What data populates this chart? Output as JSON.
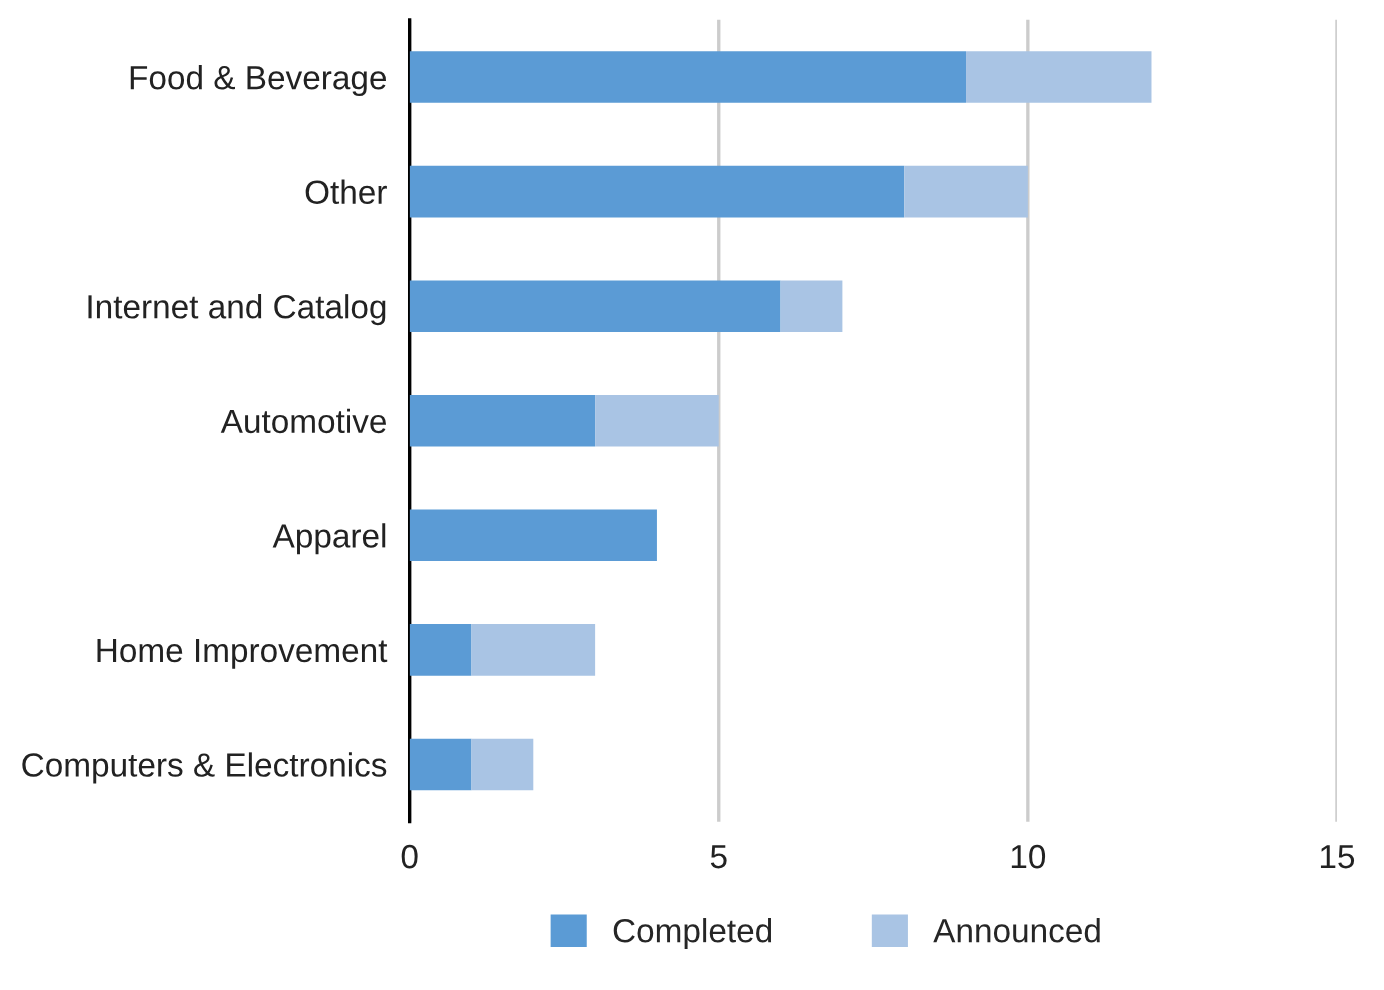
{
  "chart_data": {
    "type": "bar",
    "orientation": "horizontal",
    "stacked": true,
    "categories": [
      "Food & Beverage",
      "Other",
      "Internet and Catalog",
      "Automotive",
      "Apparel",
      "Home Improvement",
      "Computers & Electronics"
    ],
    "series": [
      {
        "name": "Completed",
        "color": "#5b9bd5",
        "values": [
          9,
          8,
          6,
          3,
          4,
          1,
          1
        ]
      },
      {
        "name": "Announced",
        "color": "#a9c4e4",
        "values": [
          3,
          2,
          1,
          2,
          null,
          2,
          1
        ]
      }
    ],
    "xlim": [
      0,
      15
    ],
    "xticks": [
      0,
      5,
      10,
      15
    ],
    "grid": "x",
    "legend": "bottom"
  }
}
